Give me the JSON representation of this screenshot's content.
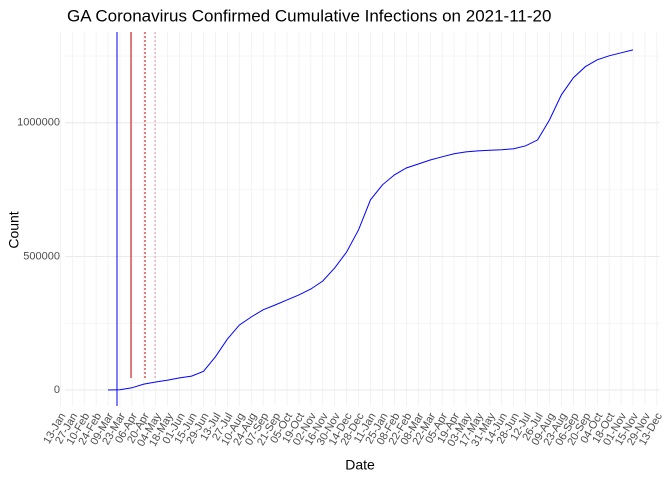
{
  "chart_data": {
    "type": "line",
    "title": "GA Coronavirus Confirmed Cumulative Infections on 2021-11-20",
    "x_label": "Date",
    "y_label": "Count",
    "categories": [
      "13-Jan",
      "27-Jan",
      "10-Feb",
      "24-Feb",
      "09-Mar",
      "23-Mar",
      "06-Apr",
      "20-Apr",
      "04-May",
      "18-May",
      "01-Jun",
      "15-Jun",
      "29-Jun",
      "13-Jul",
      "27-Jul",
      "10-Aug",
      "24-Aug",
      "07-Sep",
      "21-Sep",
      "05-Oct",
      "19-Oct",
      "02-Nov",
      "16-Nov",
      "30-Nov",
      "14-Dec",
      "28-Dec",
      "11-Jan",
      "25-Jan",
      "08-Feb",
      "22-Feb",
      "08-Mar",
      "22-Mar",
      "05-Apr",
      "19-Apr",
      "03-May",
      "17-May",
      "31-May",
      "14-Jun",
      "28-Jun",
      "12-Jul",
      "26-Jul",
      "09-Aug",
      "23-Aug",
      "06-Sep",
      "20-Sep",
      "04-Oct",
      "18-Oct",
      "01-Nov",
      "15-Nov",
      "29-Nov",
      "13-Dec"
    ],
    "series": [
      {
        "color": "#0000ff",
        "values": [
          null,
          null,
          null,
          null,
          0,
          1000,
          8000,
          22000,
          30000,
          37000,
          45000,
          52000,
          70000,
          124000,
          190000,
          243000,
          273000,
          300000,
          318000,
          337000,
          356000,
          378000,
          408000,
          457000,
          517000,
          600000,
          712000,
          768000,
          805000,
          831000,
          846000,
          861000,
          873000,
          884000,
          891000,
          895000,
          897000,
          899000,
          903000,
          914000,
          936000,
          1011000,
          1105000,
          1169000,
          1210000,
          1236000,
          1251000,
          1262000,
          1273000,
          null,
          null
        ]
      }
    ],
    "ylim": [
      -60000,
      1340000
    ],
    "yticks": [
      0,
      500000,
      1000000
    ],
    "grid": true
  }
}
